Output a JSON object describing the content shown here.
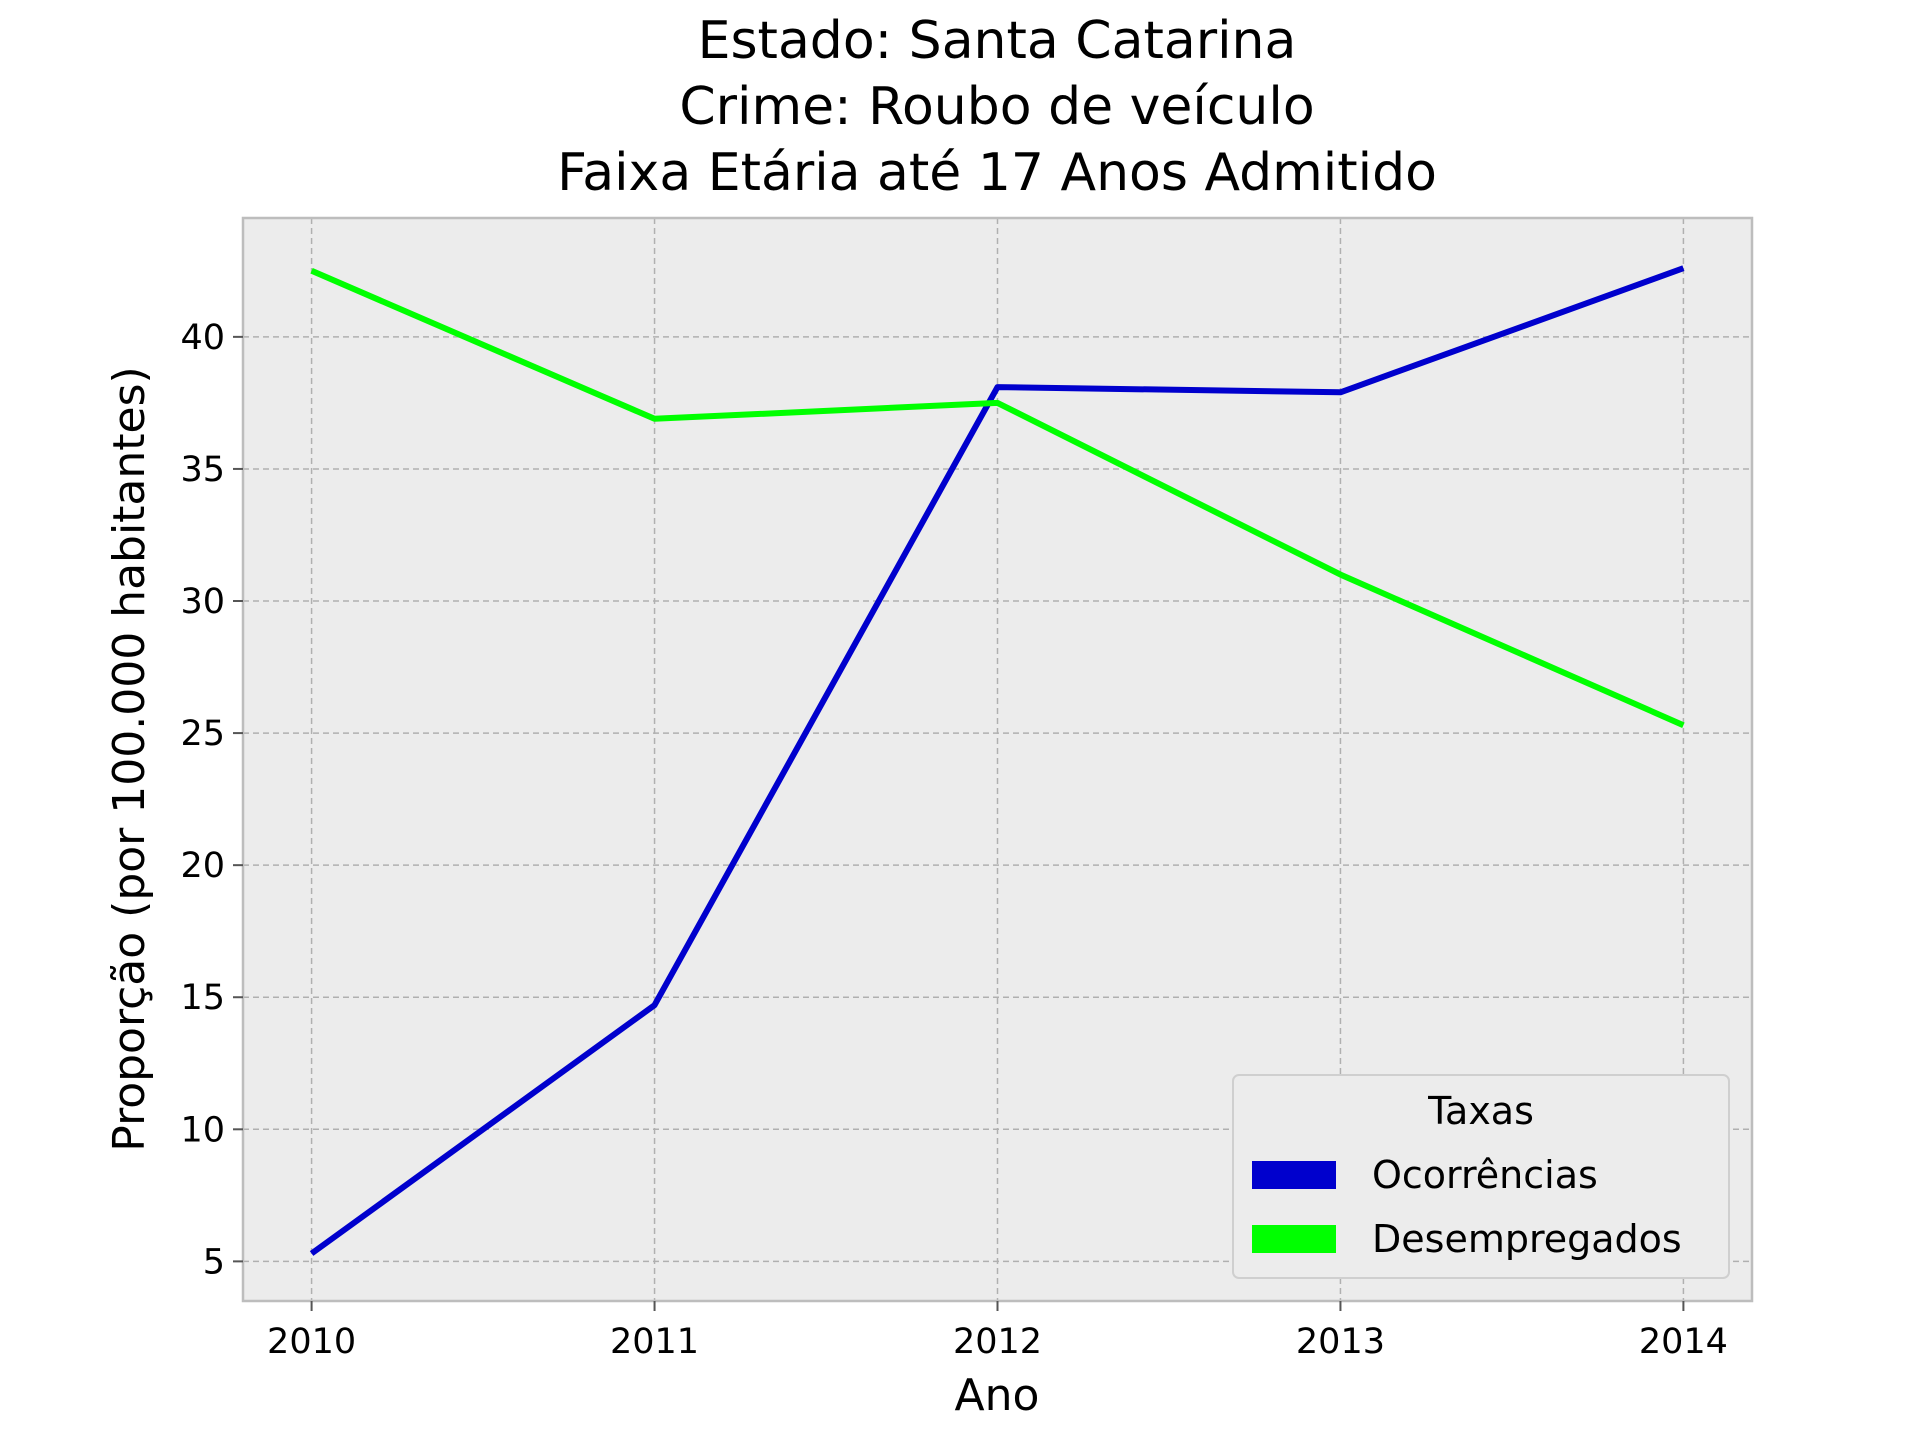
{
  "chart_data": {
    "type": "line",
    "title_lines": [
      "Estado: Santa Catarina",
      "Crime: Roubo de veículo",
      "Faixa Etária até 17 Anos   Admitido"
    ],
    "xlabel": "Ano",
    "ylabel": "Proporção (por 100.000 habitantes)",
    "x": [
      "2010",
      "2011",
      "2012",
      "2013",
      "2014"
    ],
    "xlim": [
      2009.8,
      2014.2
    ],
    "ylim": [
      3.5,
      44.5
    ],
    "yticks": [
      5,
      10,
      15,
      20,
      25,
      30,
      35,
      40
    ],
    "grid": true,
    "background": "#ececec",
    "legend": {
      "title": "Taxas",
      "placement": "bottom-right"
    },
    "series": [
      {
        "name": "Ocorrências",
        "color": "#0000cd",
        "values": [
          5.3,
          14.7,
          38.1,
          37.9,
          42.6
        ]
      },
      {
        "name": "Desempregados",
        "color": "#00ff00",
        "values": [
          42.5,
          36.9,
          37.5,
          31.0,
          25.3
        ]
      }
    ]
  }
}
